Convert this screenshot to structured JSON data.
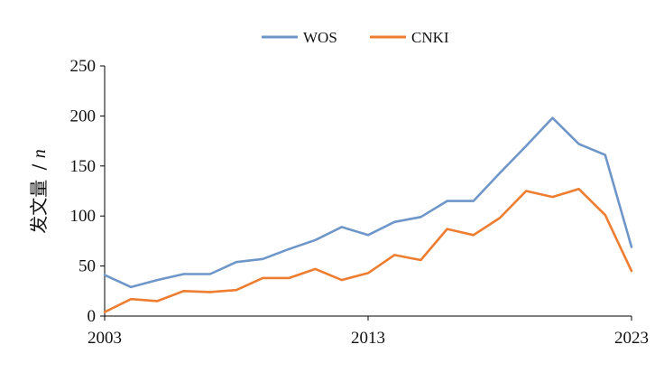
{
  "chart_data": {
    "type": "line",
    "title": "",
    "xlabel": "",
    "ylabel": "发文量",
    "ylabel_unit": "n",
    "ylabel_separator": "/",
    "x": [
      2003,
      2004,
      2005,
      2006,
      2007,
      2008,
      2009,
      2010,
      2011,
      2012,
      2013,
      2014,
      2015,
      2016,
      2017,
      2018,
      2019,
      2020,
      2021,
      2022,
      2023
    ],
    "x_tick_labels": [
      "2003",
      "2013",
      "2023"
    ],
    "y_tick_labels": [
      "0",
      "50",
      "100",
      "150",
      "200",
      "250"
    ],
    "ylim": [
      0,
      250
    ],
    "grid": false,
    "legend_position": "top-center",
    "series": [
      {
        "name": "WOS",
        "color": "#6f96c8",
        "values": [
          41,
          29,
          36,
          42,
          42,
          54,
          57,
          67,
          76,
          89,
          81,
          94,
          99,
          115,
          115,
          143,
          170,
          198,
          172,
          161,
          69
        ]
      },
      {
        "name": "CNKI",
        "color": "#ed7d31",
        "values": [
          4,
          17,
          15,
          25,
          24,
          26,
          38,
          38,
          47,
          36,
          43,
          61,
          56,
          87,
          81,
          98,
          125,
          119,
          127,
          101,
          45
        ]
      }
    ]
  }
}
